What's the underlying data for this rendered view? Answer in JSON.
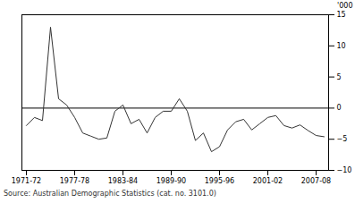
{
  "chart_data": {
    "type": "line",
    "y_label": "'000",
    "caption": "Source: Australian Demographic Statistics (cat. no. 3101.0)",
    "categories": [
      "1971-72",
      null,
      null,
      null,
      null,
      null,
      "1977-78",
      null,
      null,
      null,
      null,
      null,
      "1983-84",
      null,
      null,
      null,
      null,
      null,
      "1989-90",
      null,
      null,
      null,
      null,
      null,
      "1995-96",
      null,
      null,
      null,
      null,
      null,
      "2001-02",
      null,
      null,
      null,
      null,
      null,
      "2007-08",
      null
    ],
    "values": [
      -2.8,
      -1.5,
      -2.0,
      13.0,
      1.5,
      0.5,
      -1.5,
      -4.0,
      -4.5,
      -5.0,
      -4.8,
      -0.5,
      0.5,
      -2.5,
      -1.8,
      -4.0,
      -1.5,
      -0.5,
      -0.5,
      1.5,
      -0.5,
      -5.2,
      -4.0,
      -7.0,
      -6.2,
      -3.5,
      -2.2,
      -1.8,
      -3.5,
      -2.5,
      -1.5,
      -1.2,
      -2.8,
      -3.2,
      -2.7,
      -3.6,
      -4.4,
      -4.6
    ],
    "color": "#333333",
    "ylim": [
      -10,
      15
    ],
    "yticks": [
      -10,
      -5,
      0,
      5,
      10,
      15
    ],
    "grid": false
  }
}
